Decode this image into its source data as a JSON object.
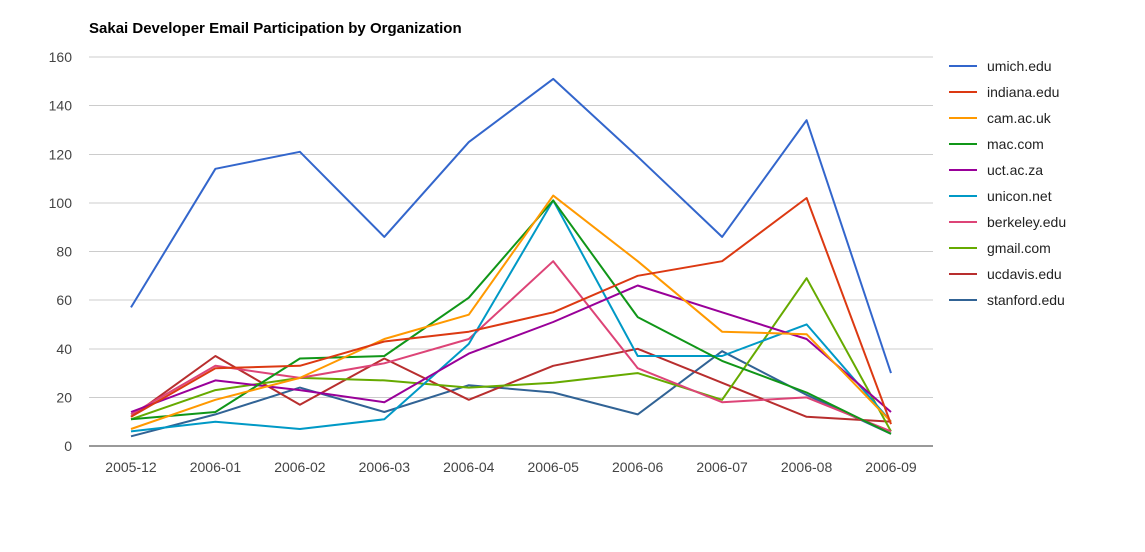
{
  "chart_data": {
    "type": "line",
    "title": "Sakai Developer Email Participation by Organization",
    "xlabel": "",
    "ylabel": "",
    "categories": [
      "2005-12",
      "2006-01",
      "2006-02",
      "2006-03",
      "2006-04",
      "2006-05",
      "2006-06",
      "2006-07",
      "2006-08",
      "2006-09"
    ],
    "ylim": [
      0,
      160
    ],
    "yticks": [
      0,
      20,
      40,
      60,
      80,
      100,
      120,
      140,
      160
    ],
    "grid": true,
    "legend_position": "right",
    "series": [
      {
        "name": "umich.edu",
        "color": "#3366cc",
        "values": [
          57,
          114,
          121,
          86,
          125,
          151,
          119,
          86,
          134,
          30
        ]
      },
      {
        "name": "indiana.edu",
        "color": "#dc3912",
        "values": [
          12,
          32,
          33,
          43,
          47,
          55,
          70,
          76,
          102,
          9
        ]
      },
      {
        "name": "cam.ac.uk",
        "color": "#ff9900",
        "values": [
          7,
          19,
          28,
          44,
          54,
          103,
          76,
          47,
          46,
          10
        ]
      },
      {
        "name": "mac.com",
        "color": "#109618",
        "values": [
          11,
          14,
          36,
          37,
          61,
          101,
          53,
          35,
          22,
          5
        ]
      },
      {
        "name": "uct.ac.za",
        "color": "#990099",
        "values": [
          14,
          27,
          23,
          18,
          38,
          51,
          66,
          55,
          44,
          14
        ]
      },
      {
        "name": "unicon.net",
        "color": "#0099c6",
        "values": [
          6,
          10,
          7,
          11,
          42,
          101,
          37,
          37,
          50,
          10
        ]
      },
      {
        "name": "berkeley.edu",
        "color": "#dd4477",
        "values": [
          13,
          33,
          28,
          34,
          44,
          76,
          32,
          18,
          20,
          6
        ]
      },
      {
        "name": "gmail.com",
        "color": "#66aa00",
        "values": [
          11,
          23,
          28,
          27,
          24,
          26,
          30,
          19,
          69,
          6
        ]
      },
      {
        "name": "ucdavis.edu",
        "color": "#b82e2e",
        "values": [
          12,
          37,
          17,
          36,
          19,
          33,
          40,
          26,
          12,
          10
        ]
      },
      {
        "name": "stanford.edu",
        "color": "#316395",
        "values": [
          4,
          13,
          24,
          14,
          25,
          22,
          13,
          39,
          21,
          5
        ]
      }
    ]
  }
}
